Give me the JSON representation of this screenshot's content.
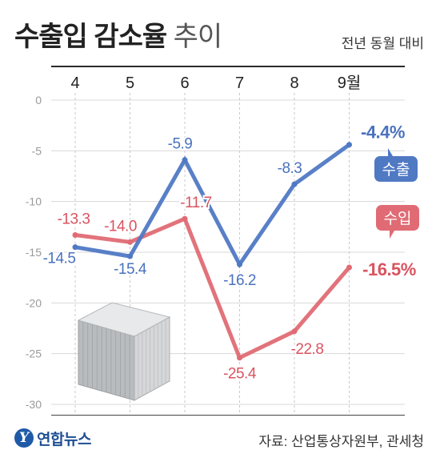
{
  "header": {
    "title_bold": "수출입 감소율",
    "title_light": "추이",
    "subtitle": "전년 동월 대비"
  },
  "footer": {
    "logo_text": "연합뉴스",
    "source": "자료: 산업통상자원부, 관세청"
  },
  "colors": {
    "export": "#5079c4",
    "import": "#e06b74",
    "export_label": "#4a72bd",
    "import_label": "#d9535f"
  },
  "chart_data": {
    "type": "line",
    "title": "수출입 감소율 추이",
    "subtitle": "전년 동월 대비",
    "categories": [
      "4",
      "5",
      "6",
      "7",
      "8",
      "9월"
    ],
    "ylim": [
      -30,
      0
    ],
    "yticks": [
      0,
      -5,
      -10,
      -15,
      -20,
      -25,
      -30
    ],
    "grid": true,
    "legend": "right",
    "series": [
      {
        "name": "수출",
        "values": [
          -14.5,
          -15.4,
          -5.9,
          -16.2,
          -8.3,
          -4.4
        ],
        "labels": [
          "-14.5",
          "-15.4",
          "-5.9",
          "-16.2",
          "-8.3",
          "-4.4%"
        ]
      },
      {
        "name": "수입",
        "values": [
          -13.3,
          -14.0,
          -11.7,
          -25.4,
          -22.8,
          -16.5
        ],
        "labels": [
          "-13.3",
          "-14.0",
          "-11.7",
          "-25.4",
          "-22.8",
          "-16.5%"
        ]
      }
    ]
  }
}
